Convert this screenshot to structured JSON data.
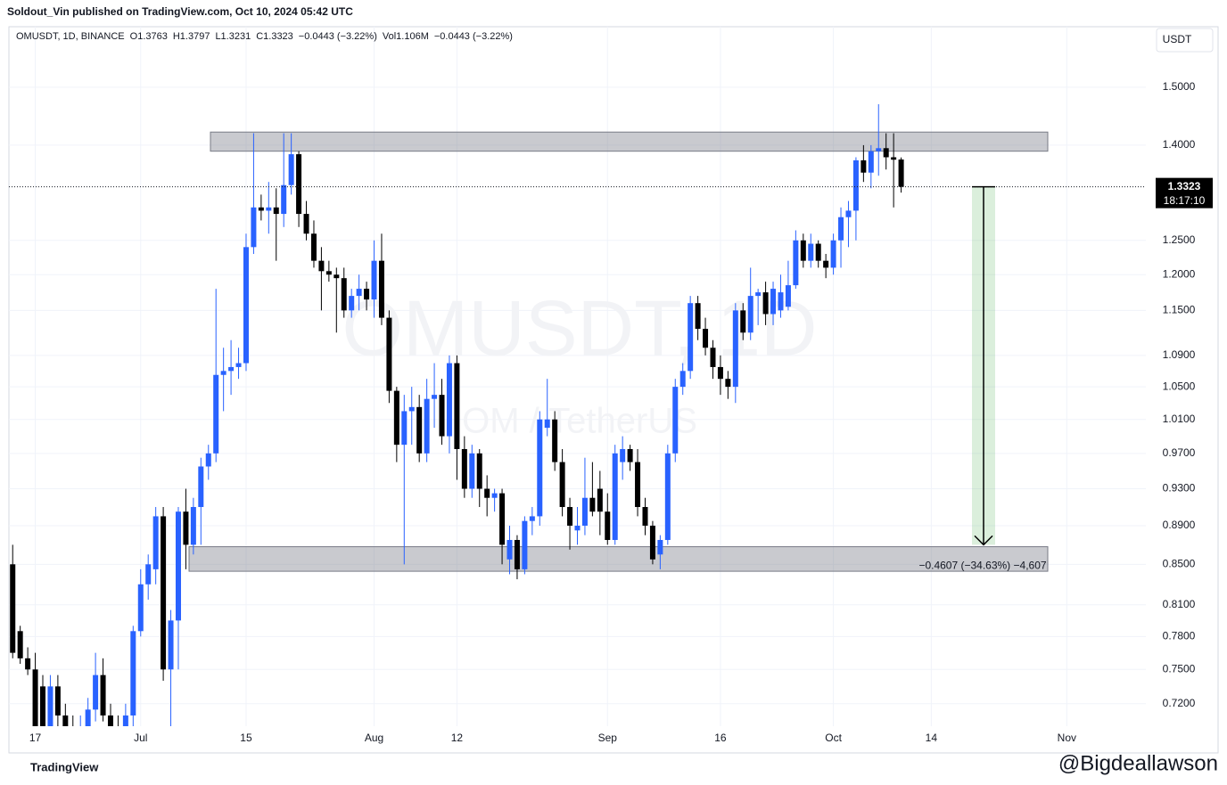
{
  "header": {
    "publisher": "Soldout_Vin published on TradingView.com, Oct 10, 2024 05:42 UTC"
  },
  "footer": {
    "brand": "TradingView",
    "handle": "@Bigdeallawson"
  },
  "chart_data": {
    "type": "candlestick",
    "legend_items": [
      "OMUSDT, 1D, BINANCE",
      "O1.3763",
      "H1.3797",
      "L1.3231",
      "C1.3323",
      "−0.0443 (−3.22%)",
      "Vol1.106M",
      "−0.0443 (−3.22%)"
    ],
    "currency": "USDT",
    "watermark": [
      "OMUSDT, 1D",
      "OM / TetherUS"
    ],
    "countdown": "18:17:10",
    "up_color": "#2962ff",
    "down_color": "#000000",
    "log_scale": true,
    "grid": true,
    "xlim": [
      -0.5,
      150.5
    ],
    "xticks": [
      {
        "value": 3,
        "label": "17"
      },
      {
        "value": 17,
        "label": "Jul"
      },
      {
        "value": 31,
        "label": "15"
      },
      {
        "value": 48,
        "label": "Aug"
      },
      {
        "value": 59,
        "label": "12"
      },
      {
        "value": 79,
        "label": "Sep"
      },
      {
        "value": 94,
        "label": "16"
      },
      {
        "value": 109,
        "label": "Oct"
      },
      {
        "value": 122,
        "label": "14"
      },
      {
        "value": 140,
        "label": "Nov"
      }
    ],
    "ylim": [
      0.701,
      1.612
    ],
    "yticks": [
      {
        "value": 0.72,
        "label": "0.7200"
      },
      {
        "value": 0.75,
        "label": "0.7500"
      },
      {
        "value": 0.78,
        "label": "0.7800"
      },
      {
        "value": 0.81,
        "label": "0.8100"
      },
      {
        "value": 0.85,
        "label": "0.8500"
      },
      {
        "value": 0.89,
        "label": "0.8900"
      },
      {
        "value": 0.93,
        "label": "0.9300"
      },
      {
        "value": 0.97,
        "label": "0.9700"
      },
      {
        "value": 1.01,
        "label": "1.0100"
      },
      {
        "value": 1.05,
        "label": "1.0500"
      },
      {
        "value": 1.09,
        "label": "1.0900"
      },
      {
        "value": 1.15,
        "label": "1.1500"
      },
      {
        "value": 1.2,
        "label": "1.2000"
      },
      {
        "value": 1.25,
        "label": "1.2500"
      },
      {
        "value": 1.4,
        "label": "1.4000"
      },
      {
        "value": 1.5,
        "label": "1.5000"
      }
    ],
    "zones": [
      {
        "top": 1.422,
        "bottom": 1.39
      },
      {
        "top": 0.868,
        "bottom": 0.843
      }
    ],
    "measure": {
      "target": 0.87,
      "label": "−0.4607 (−34.63%) −4,607"
    },
    "ohlc": [
      [
        0.85,
        0.87,
        0.76,
        0.765
      ],
      [
        0.785,
        0.79,
        0.755,
        0.76
      ],
      [
        0.76,
        0.77,
        0.745,
        0.75
      ],
      [
        0.75,
        0.765,
        0.69,
        0.695
      ],
      [
        0.735,
        0.745,
        0.69,
        0.7
      ],
      [
        0.7,
        0.745,
        0.69,
        0.735
      ],
      [
        0.735,
        0.745,
        0.7,
        0.71
      ],
      [
        0.71,
        0.72,
        0.69,
        0.7
      ],
      [
        0.7,
        0.71,
        0.69,
        0.695
      ],
      [
        0.695,
        0.71,
        0.69,
        0.7
      ],
      [
        0.7,
        0.725,
        0.69,
        0.715
      ],
      [
        0.715,
        0.765,
        0.705,
        0.745
      ],
      [
        0.745,
        0.76,
        0.705,
        0.71
      ],
      [
        0.71,
        0.72,
        0.69,
        0.7
      ],
      [
        0.7,
        0.71,
        0.69,
        0.7
      ],
      [
        0.7,
        0.72,
        0.69,
        0.71
      ],
      [
        0.71,
        0.79,
        0.7,
        0.785
      ],
      [
        0.785,
        0.845,
        0.78,
        0.83
      ],
      [
        0.83,
        0.86,
        0.815,
        0.85
      ],
      [
        0.845,
        0.91,
        0.83,
        0.9
      ],
      [
        0.9,
        0.91,
        0.74,
        0.75
      ],
      [
        0.75,
        0.805,
        0.69,
        0.795
      ],
      [
        0.795,
        0.91,
        0.75,
        0.905
      ],
      [
        0.905,
        0.93,
        0.845,
        0.87
      ],
      [
        0.87,
        0.92,
        0.86,
        0.91
      ],
      [
        0.91,
        0.965,
        0.87,
        0.955
      ],
      [
        0.955,
        0.98,
        0.94,
        0.97
      ],
      [
        0.97,
        1.18,
        0.96,
        1.065
      ],
      [
        1.065,
        1.1,
        1.02,
        1.07
      ],
      [
        1.07,
        1.11,
        1.04,
        1.075
      ],
      [
        1.075,
        1.1,
        1.06,
        1.08
      ],
      [
        1.08,
        1.26,
        1.07,
        1.24
      ],
      [
        1.24,
        1.42,
        1.23,
        1.3
      ],
      [
        1.3,
        1.32,
        1.28,
        1.295
      ],
      [
        1.295,
        1.34,
        1.26,
        1.3
      ],
      [
        1.3,
        1.33,
        1.22,
        1.29
      ],
      [
        1.29,
        1.42,
        1.27,
        1.335
      ],
      [
        1.335,
        1.42,
        1.32,
        1.385
      ],
      [
        1.385,
        1.39,
        1.27,
        1.29
      ],
      [
        1.29,
        1.31,
        1.25,
        1.26
      ],
      [
        1.26,
        1.28,
        1.21,
        1.22
      ],
      [
        1.22,
        1.24,
        1.15,
        1.205
      ],
      [
        1.205,
        1.22,
        1.19,
        1.2
      ],
      [
        1.2,
        1.21,
        1.12,
        1.195
      ],
      [
        1.195,
        1.21,
        1.14,
        1.15
      ],
      [
        1.15,
        1.18,
        1.14,
        1.17
      ],
      [
        1.17,
        1.2,
        1.15,
        1.18
      ],
      [
        1.18,
        1.19,
        1.15,
        1.165
      ],
      [
        1.165,
        1.25,
        1.14,
        1.22
      ],
      [
        1.22,
        1.26,
        1.13,
        1.14
      ],
      [
        1.14,
        1.15,
        1.03,
        1.045
      ],
      [
        1.045,
        1.05,
        0.96,
        0.98
      ],
      [
        0.98,
        1.04,
        0.85,
        1.02
      ],
      [
        1.02,
        1.05,
        0.98,
        1.025
      ],
      [
        1.025,
        1.04,
        0.96,
        0.97
      ],
      [
        0.97,
        1.06,
        0.96,
        1.035
      ],
      [
        1.035,
        1.08,
        1.0,
        1.04
      ],
      [
        1.04,
        1.06,
        0.98,
        0.99
      ],
      [
        0.99,
        1.09,
        0.97,
        1.08
      ],
      [
        1.08,
        1.09,
        0.94,
        0.975
      ],
      [
        0.975,
        0.99,
        0.92,
        0.93
      ],
      [
        0.93,
        0.98,
        0.92,
        0.97
      ],
      [
        0.97,
        0.975,
        0.91,
        0.93
      ],
      [
        0.93,
        0.945,
        0.9,
        0.92
      ],
      [
        0.92,
        0.93,
        0.905,
        0.925
      ],
      [
        0.925,
        0.93,
        0.85,
        0.87
      ],
      [
        0.855,
        0.89,
        0.84,
        0.875
      ],
      [
        0.875,
        0.88,
        0.835,
        0.845
      ],
      [
        0.845,
        0.9,
        0.84,
        0.895
      ],
      [
        0.895,
        0.91,
        0.88,
        0.9
      ],
      [
        0.9,
        1.02,
        0.89,
        1.01
      ],
      [
        1.0,
        1.06,
        0.99,
        1.01
      ],
      [
        1.01,
        1.02,
        0.95,
        0.96
      ],
      [
        0.96,
        0.975,
        0.9,
        0.91
      ],
      [
        0.91,
        0.92,
        0.865,
        0.89
      ],
      [
        0.885,
        0.91,
        0.87,
        0.89
      ],
      [
        0.89,
        0.965,
        0.88,
        0.92
      ],
      [
        0.92,
        0.96,
        0.9,
        0.905
      ],
      [
        0.93,
        0.95,
        0.88,
        0.905
      ],
      [
        0.905,
        0.925,
        0.87,
        0.875
      ],
      [
        0.875,
        0.98,
        0.87,
        0.97
      ],
      [
        0.96,
        0.99,
        0.94,
        0.975
      ],
      [
        0.975,
        0.98,
        0.95,
        0.96
      ],
      [
        0.96,
        0.975,
        0.9,
        0.91
      ],
      [
        0.91,
        0.92,
        0.88,
        0.89
      ],
      [
        0.89,
        0.895,
        0.85,
        0.855
      ],
      [
        0.86,
        0.88,
        0.845,
        0.875
      ],
      [
        0.875,
        0.98,
        0.87,
        0.97
      ],
      [
        0.97,
        1.06,
        0.96,
        1.05
      ],
      [
        1.05,
        1.08,
        1.04,
        1.07
      ],
      [
        1.07,
        1.17,
        1.06,
        1.16
      ],
      [
        1.16,
        1.17,
        1.11,
        1.125
      ],
      [
        1.125,
        1.14,
        1.09,
        1.1
      ],
      [
        1.1,
        1.11,
        1.06,
        1.075
      ],
      [
        1.075,
        1.09,
        1.04,
        1.06
      ],
      [
        1.06,
        1.07,
        1.035,
        1.05
      ],
      [
        1.05,
        1.16,
        1.03,
        1.15
      ],
      [
        1.15,
        1.16,
        1.11,
        1.12
      ],
      [
        1.12,
        1.21,
        1.11,
        1.17
      ],
      [
        1.17,
        1.18,
        1.13,
        1.175
      ],
      [
        1.175,
        1.19,
        1.13,
        1.145
      ],
      [
        1.145,
        1.19,
        1.13,
        1.18
      ],
      [
        1.15,
        1.2,
        1.14,
        1.175
      ],
      [
        1.155,
        1.22,
        1.15,
        1.185
      ],
      [
        1.185,
        1.265,
        1.18,
        1.25
      ],
      [
        1.25,
        1.26,
        1.21,
        1.22
      ],
      [
        1.22,
        1.26,
        1.21,
        1.245
      ],
      [
        1.245,
        1.25,
        1.21,
        1.22
      ],
      [
        1.22,
        1.23,
        1.195,
        1.21
      ],
      [
        1.21,
        1.26,
        1.2,
        1.25
      ],
      [
        1.25,
        1.3,
        1.21,
        1.285
      ],
      [
        1.285,
        1.31,
        1.24,
        1.295
      ],
      [
        1.295,
        1.38,
        1.25,
        1.375
      ],
      [
        1.375,
        1.4,
        1.34,
        1.355
      ],
      [
        1.355,
        1.4,
        1.33,
        1.39
      ],
      [
        1.39,
        1.47,
        1.35,
        1.395
      ],
      [
        1.395,
        1.42,
        1.36,
        1.38
      ],
      [
        1.38,
        1.42,
        1.3,
        1.376
      ],
      [
        1.3763,
        1.3797,
        1.3231,
        1.3323
      ]
    ]
  }
}
